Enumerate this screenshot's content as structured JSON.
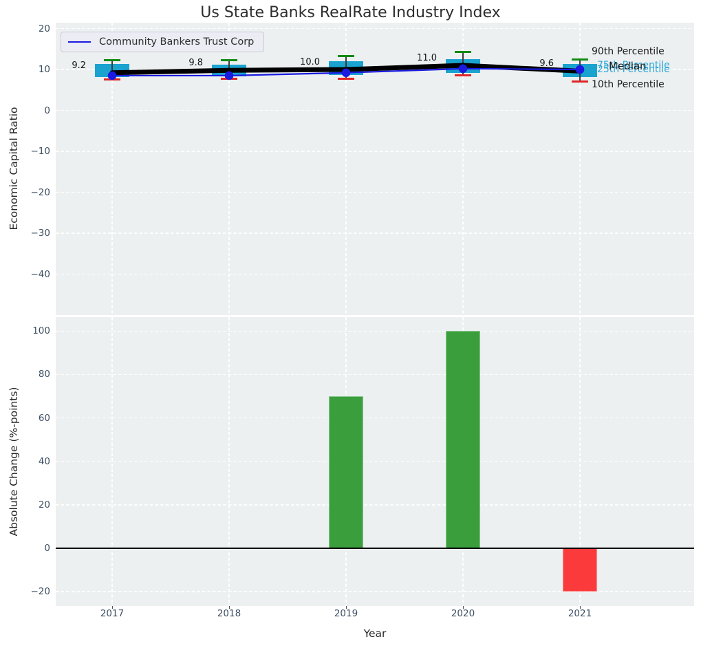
{
  "title": "Us State Banks RealRate Industry Index",
  "legend": {
    "label": "Community Bankers Trust Corp"
  },
  "colors": {
    "figure_bg": "#ffffff",
    "axes_bg": "#ecf0f1",
    "grid": "#ffffff",
    "box_fill": "#1aa3cf",
    "whisker_cap_high": "#128a12",
    "whisker_cap_low": "#e02424",
    "whisker_line": "#3c3c3c",
    "median_line": "#000000",
    "company_line": "#1a1ae0",
    "bar_positive": "#3a9e3d",
    "bar_negative": "#fb3b3b",
    "tick_label": "#3d4f63",
    "axis_label": "#262626",
    "title_color": "#2e2e2e",
    "annotation_dark": "#1a1a1a",
    "annotation_cyan": "#29a5d6"
  },
  "chart_data": [
    {
      "type": "boxplot",
      "ylabel": "Economic Capital Ratio",
      "ylim": [
        -50,
        21.4
      ],
      "yticks": [
        20,
        10,
        0,
        -10,
        -20,
        -30,
        -40
      ],
      "ytick_labels": [
        "20",
        "10",
        "0",
        "−10",
        "−20",
        "−30",
        "−40"
      ],
      "categories": [
        "2017",
        "2018",
        "2019",
        "2020",
        "2021"
      ],
      "grid": true,
      "legend_position": "upper left",
      "boxes": [
        {
          "year": "2017",
          "whisker_low": 7.6,
          "q1": 8.1,
          "median": 9.2,
          "q3": 11.4,
          "whisker_high": 12.3
        },
        {
          "year": "2018",
          "whisker_low": 7.7,
          "q1": 8.3,
          "median": 9.8,
          "q3": 11.2,
          "whisker_high": 12.2
        },
        {
          "year": "2019",
          "whisker_low": 7.7,
          "q1": 8.7,
          "median": 10.0,
          "q3": 12.1,
          "whisker_high": 13.3
        },
        {
          "year": "2020",
          "whisker_low": 8.5,
          "q1": 9.2,
          "median": 11.0,
          "q3": 12.6,
          "whisker_high": 14.3
        },
        {
          "year": "2021",
          "whisker_low": 7.1,
          "q1": 8.2,
          "median": 9.6,
          "q3": 11.3,
          "whisker_high": 12.4
        }
      ],
      "median_labels": [
        "9.2",
        "9.8",
        "10.0",
        "11.0",
        "9.6"
      ],
      "series": [
        {
          "name": "Community Bankers Trust Corp",
          "values": [
            8.5,
            8.5,
            9.2,
            10.2,
            10.0
          ]
        }
      ],
      "annotations": [
        {
          "id": "p90",
          "text": "90th Percentile",
          "tone": "dark"
        },
        {
          "id": "p75",
          "text": "75th Percentile",
          "tone": "cyan"
        },
        {
          "id": "p25",
          "text": "25th Percentile",
          "tone": "cyan"
        },
        {
          "id": "median",
          "text": "Median",
          "tone": "dark"
        },
        {
          "id": "p10",
          "text": "10th Percentile",
          "tone": "dark"
        }
      ]
    },
    {
      "type": "bar",
      "ylabel": "Absolute Change (%-points)",
      "xlabel": "Year",
      "ylim": [
        -26.6,
        106.4
      ],
      "yticks": [
        100,
        80,
        60,
        40,
        20,
        0,
        -20
      ],
      "ytick_labels": [
        "100",
        "80",
        "60",
        "40",
        "20",
        "0",
        "−20"
      ],
      "categories": [
        "2017",
        "2018",
        "2019",
        "2020",
        "2021"
      ],
      "values": [
        null,
        0,
        70,
        100,
        -20
      ],
      "zero_line": true,
      "grid": true
    }
  ]
}
